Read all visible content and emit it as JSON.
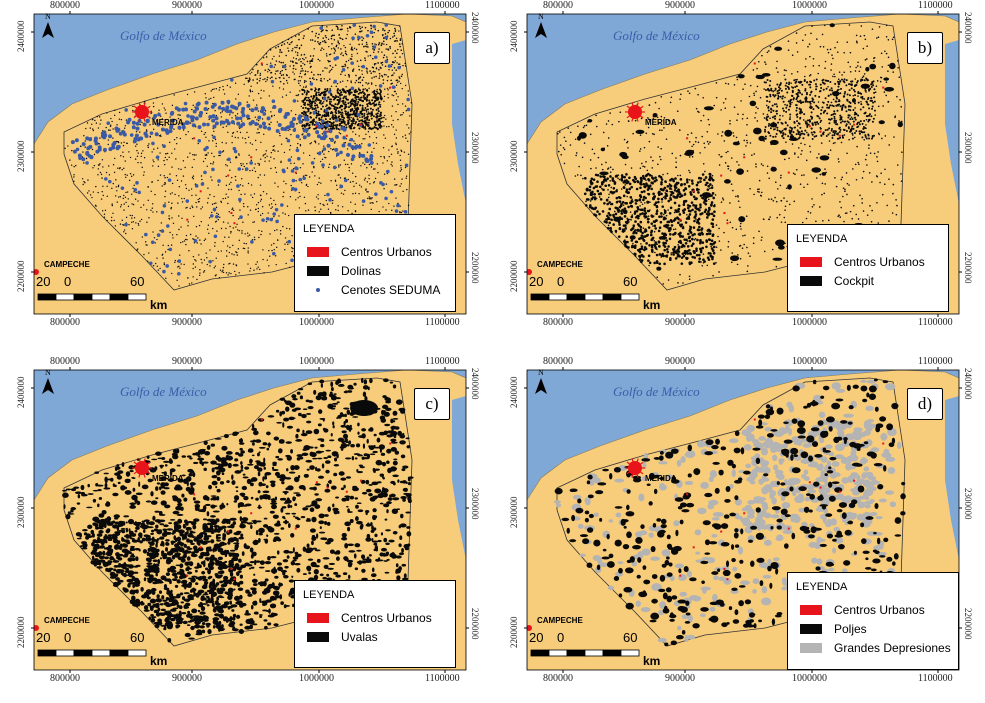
{
  "gulf_label": "Golfo de México",
  "city_merida": "MERIDA",
  "city_campeche": "CAMPECHE",
  "north_label": "N",
  "x_ticks": [
    "800000",
    "900000",
    "1000000",
    "1100000"
  ],
  "y_ticks": [
    "2400000",
    "2300000",
    "2200000"
  ],
  "scale": {
    "n20": "20",
    "n0": "0",
    "n60": "60",
    "unit": "km"
  },
  "legend_title": "LEYENDA",
  "panels": [
    {
      "letter": "a)",
      "items": [
        {
          "label": "Centros Urbanos",
          "kind": "box",
          "color": "#e8141b"
        },
        {
          "label": "Dolinas",
          "kind": "box",
          "color": "#0a0a0a"
        },
        {
          "label": "Cenotes SEDUMA",
          "kind": "dot",
          "color": "#3b5aa6"
        }
      ]
    },
    {
      "letter": "b)",
      "items": [
        {
          "label": "Centros Urbanos",
          "kind": "box",
          "color": "#e8141b"
        },
        {
          "label": "Cockpit",
          "kind": "box",
          "color": "#0a0a0a"
        }
      ]
    },
    {
      "letter": "c)",
      "items": [
        {
          "label": "Centros Urbanos",
          "kind": "box",
          "color": "#e8141b"
        },
        {
          "label": "Uvalas",
          "kind": "box",
          "color": "#0a0a0a"
        }
      ]
    },
    {
      "letter": "d)",
      "items": [
        {
          "label": "Centros Urbanos",
          "kind": "box",
          "color": "#e8141b"
        },
        {
          "label": "Poljes",
          "kind": "box",
          "color": "#0a0a0a"
        },
        {
          "label": "Grandes Depresiones",
          "kind": "box",
          "color": "#b4b4b4"
        }
      ]
    }
  ],
  "colors": {
    "sea": "#7fa8d6",
    "land": "#f7cd7b",
    "urban": "#e8141b",
    "feature": "#0a0a0a",
    "cenote": "#3b5aa6",
    "depression": "#b4b4b4"
  }
}
